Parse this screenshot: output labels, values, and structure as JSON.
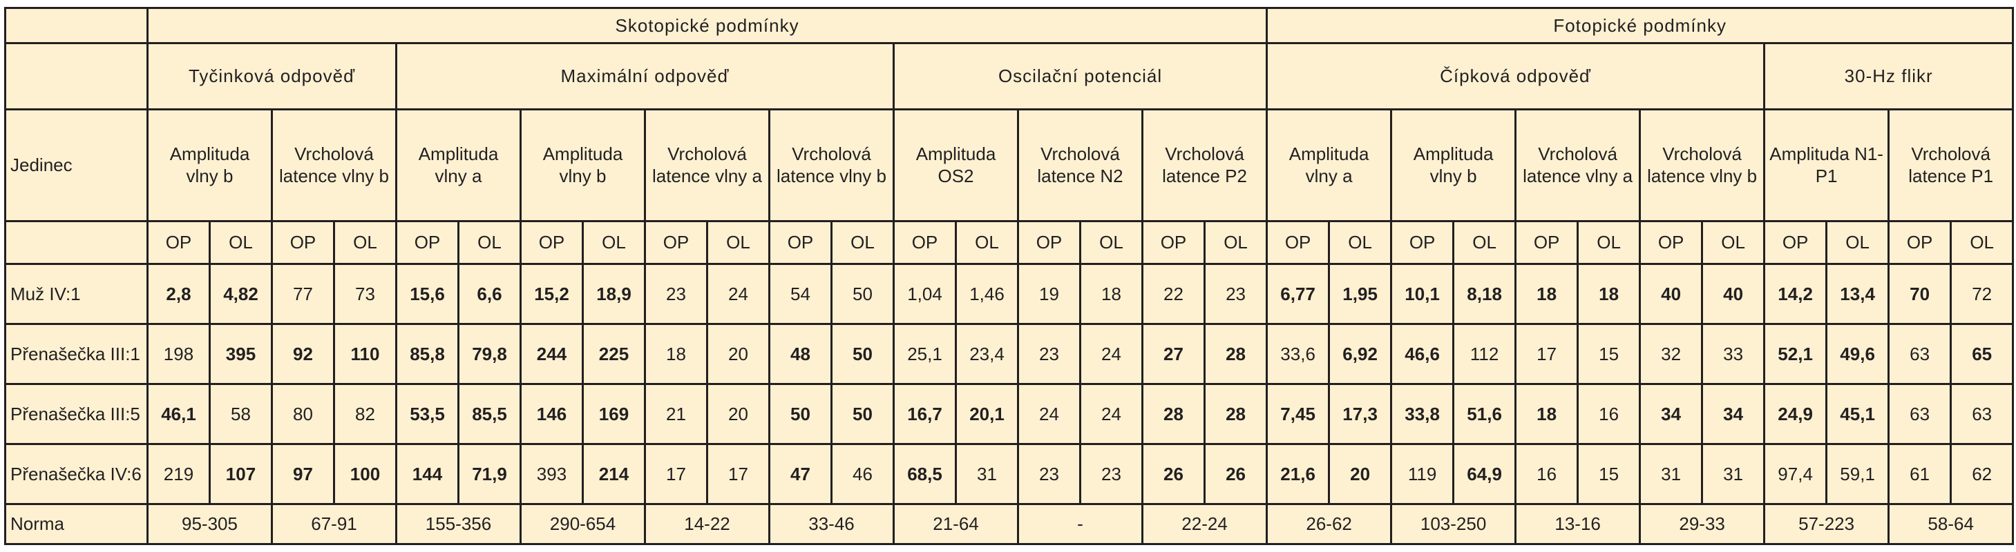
{
  "first_header": "Jedinec",
  "conditions": [
    {
      "name": "Skotopické podmínky",
      "tests": [
        {
          "name": "Tyčinková odpověď",
          "measures": [
            {
              "name": "Amplituda vlny b",
              "sub": [
                "OP",
                "OL"
              ]
            },
            {
              "name": "Vrcholová latence vlny b",
              "sub": [
                "OP",
                "OL"
              ]
            }
          ]
        },
        {
          "name": "Maximální odpověď",
          "measures": [
            {
              "name": "Amplituda vlny a",
              "sub": [
                "OP",
                "OL"
              ]
            },
            {
              "name": "Amplituda vlny b",
              "sub": [
                "OP",
                "OL"
              ]
            },
            {
              "name": "Vrcholová latence vlny a",
              "sub": [
                "OP",
                "OL"
              ]
            },
            {
              "name": "Vrcholová latence vlny b",
              "sub": [
                "OP",
                "OL"
              ]
            }
          ]
        },
        {
          "name": "Oscilační potenciál",
          "measures": [
            {
              "name": "Amplituda OS2",
              "sub": [
                "OP",
                "OL"
              ]
            },
            {
              "name": "Vrcholová latence N2",
              "sub": [
                "OP",
                "OL"
              ]
            },
            {
              "name": "Vrcholová latence P2",
              "sub": [
                "OP",
                "OL"
              ]
            }
          ]
        }
      ]
    },
    {
      "name": "Fotopické podmínky",
      "tests": [
        {
          "name": "Čípková odpověď",
          "measures": [
            {
              "name": "Amplituda vlny a",
              "sub": [
                "OP",
                "OL"
              ]
            },
            {
              "name": "Amplituda vlny b",
              "sub": [
                "OP",
                "OL"
              ]
            },
            {
              "name": "Vrcholová latence vlny a",
              "sub": [
                "OP",
                "OL"
              ]
            },
            {
              "name": "Vrcholová latence vlny b",
              "sub": [
                "OP",
                "OL"
              ]
            }
          ]
        },
        {
          "name": "30-Hz flikr",
          "measures": [
            {
              "name": "Amplituda N1-P1",
              "sub": [
                "OP",
                "OL"
              ]
            },
            {
              "name": "Vrcholová latence P1",
              "sub": [
                "OP",
                "OL"
              ]
            }
          ]
        }
      ]
    }
  ],
  "rows": [
    {
      "label": "Muž IV:1",
      "cells": [
        "2,8",
        "4,82",
        "77",
        "73",
        "15,6",
        "6,6",
        "15,2",
        "18,9",
        "23",
        "24",
        "54",
        "50",
        "1,04",
        "1,46",
        "19",
        "18",
        "22",
        "23",
        "6,77",
        "1,95",
        "10,1",
        "8,18",
        "18",
        "18",
        "40",
        "40",
        "14,2",
        "13,4",
        "70",
        "72"
      ],
      "bold": [
        true,
        true,
        false,
        false,
        true,
        true,
        true,
        true,
        false,
        false,
        false,
        false,
        false,
        false,
        false,
        false,
        false,
        false,
        true,
        true,
        true,
        true,
        true,
        true,
        true,
        true,
        true,
        true,
        true,
        false
      ]
    },
    {
      "label": "Přenašečka III:1",
      "cells": [
        "198",
        "395",
        "92",
        "110",
        "85,8",
        "79,8",
        "244",
        "225",
        "18",
        "20",
        "48",
        "50",
        "25,1",
        "23,4",
        "23",
        "24",
        "27",
        "28",
        "33,6",
        "6,92",
        "46,6",
        "112",
        "17",
        "15",
        "32",
        "33",
        "52,1",
        "49,6",
        "63",
        "65"
      ],
      "bold": [
        false,
        true,
        true,
        true,
        true,
        true,
        true,
        true,
        false,
        false,
        true,
        true,
        false,
        false,
        false,
        false,
        true,
        true,
        false,
        true,
        true,
        false,
        false,
        false,
        false,
        false,
        true,
        true,
        false,
        true
      ]
    },
    {
      "label": "Přenašečka III:5",
      "cells": [
        "46,1",
        "58",
        "80",
        "82",
        "53,5",
        "85,5",
        "146",
        "169",
        "21",
        "20",
        "50",
        "50",
        "16,7",
        "20,1",
        "24",
        "24",
        "28",
        "28",
        "7,45",
        "17,3",
        "33,8",
        "51,6",
        "18",
        "16",
        "34",
        "34",
        "24,9",
        "45,1",
        "63",
        "63"
      ],
      "bold": [
        true,
        false,
        false,
        false,
        true,
        true,
        true,
        true,
        false,
        false,
        true,
        true,
        true,
        true,
        false,
        false,
        true,
        true,
        true,
        true,
        true,
        true,
        true,
        false,
        true,
        true,
        true,
        true,
        false,
        false
      ]
    },
    {
      "label": "Přenašečka IV:6",
      "cells": [
        "219",
        "107",
        "97",
        "100",
        "144",
        "71,9",
        "393",
        "214",
        "17",
        "17",
        "47",
        "46",
        "68,5",
        "31",
        "23",
        "23",
        "26",
        "26",
        "21,6",
        "20",
        "119",
        "64,9",
        "16",
        "15",
        "31",
        "31",
        "97,4",
        "59,1",
        "61",
        "62"
      ],
      "bold": [
        false,
        true,
        true,
        true,
        true,
        true,
        false,
        true,
        false,
        false,
        true,
        false,
        true,
        false,
        false,
        false,
        true,
        true,
        true,
        true,
        false,
        true,
        false,
        false,
        false,
        false,
        false,
        false,
        false,
        false
      ]
    }
  ],
  "norm": {
    "label": "Norma",
    "ranges": [
      "95-305",
      "67-91",
      "155-356",
      "290-654",
      "14-22",
      "33-46",
      "21-64",
      "-",
      "22-24",
      "26-62",
      "103-250",
      "13-16",
      "29-33",
      "57-223",
      "58-64"
    ]
  }
}
